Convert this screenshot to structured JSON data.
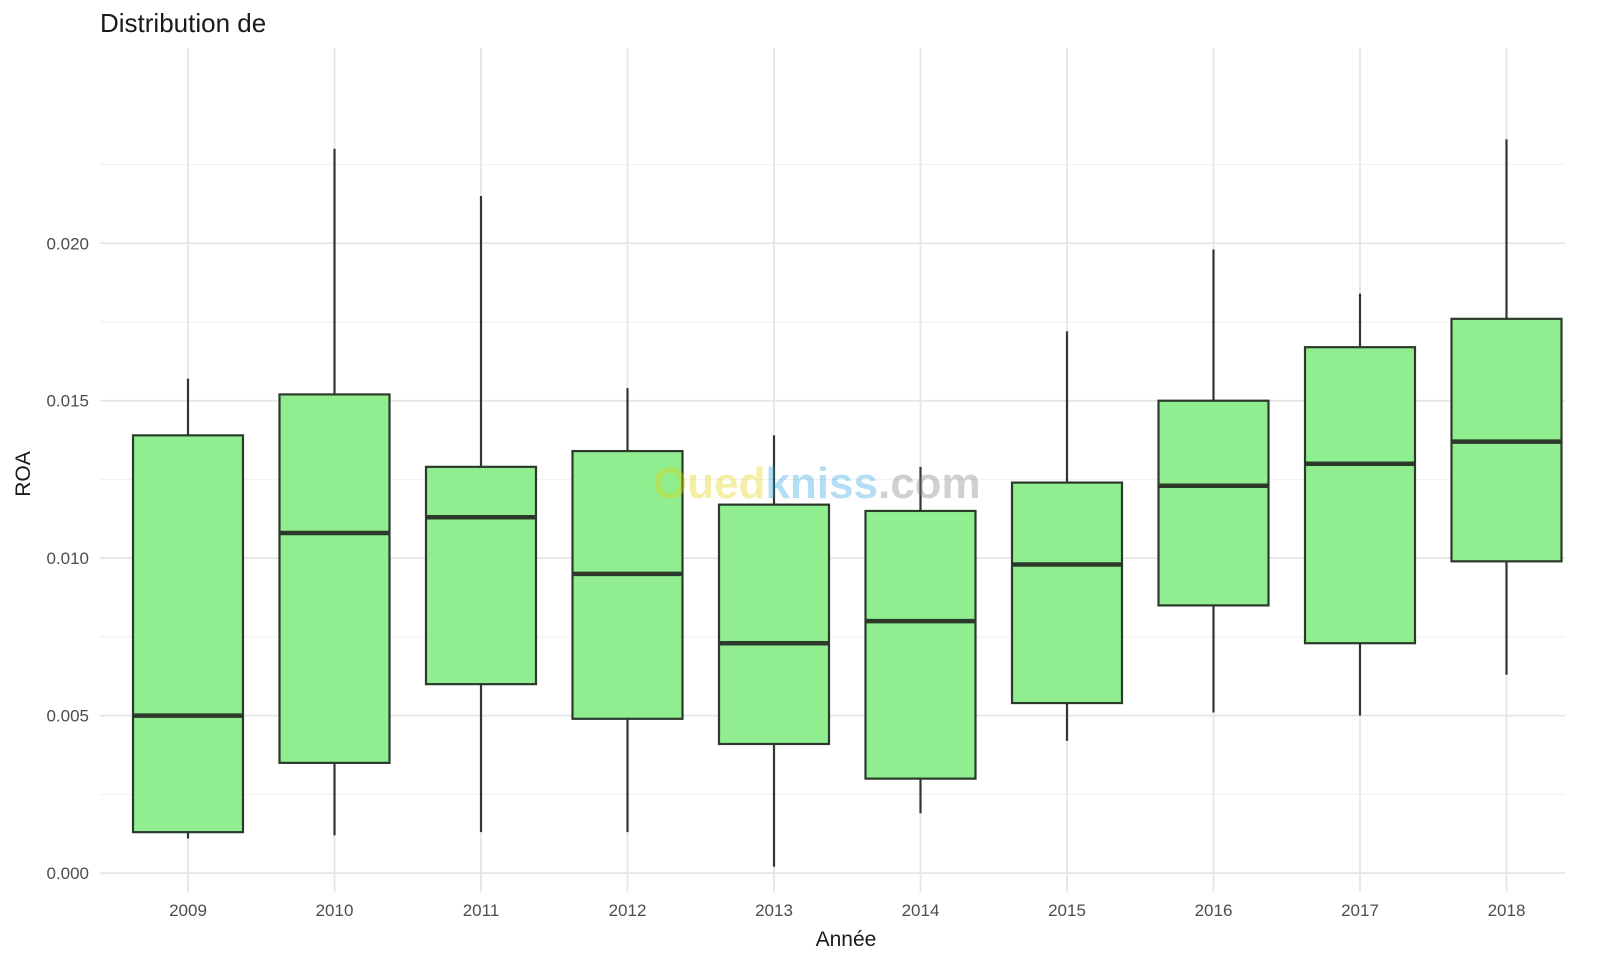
{
  "watermark": {
    "part1": "Oued",
    "part2": "kniss",
    "part3": ".com",
    "colors": [
      "#e3d400",
      "#2aa3dd",
      "#7a7a7a"
    ]
  },
  "chart_data": {
    "type": "boxplot",
    "title": "Distribution de",
    "xlabel": "Année",
    "ylabel": "ROA",
    "ylim": [
      -0.0006,
      0.0262
    ],
    "yticks": [
      0.0,
      0.005,
      0.01,
      0.015,
      0.02
    ],
    "ytick_labels": [
      "0.000",
      "0.005",
      "0.010",
      "0.015",
      "0.020"
    ],
    "grid": true,
    "fill_color": "#90ee90",
    "stroke_color": "#2b3a2b",
    "categories": [
      "2009",
      "2010",
      "2011",
      "2012",
      "2013",
      "2014",
      "2015",
      "2016",
      "2017",
      "2018"
    ],
    "boxes": [
      {
        "category": "2009",
        "whisker_low": 0.0011,
        "q1": 0.0013,
        "median": 0.005,
        "q3": 0.0139,
        "whisker_high": 0.0157
      },
      {
        "category": "2010",
        "whisker_low": 0.0012,
        "q1": 0.0035,
        "median": 0.0108,
        "q3": 0.0152,
        "whisker_high": 0.023
      },
      {
        "category": "2011",
        "whisker_low": 0.0013,
        "q1": 0.006,
        "median": 0.0113,
        "q3": 0.0129,
        "whisker_high": 0.0215
      },
      {
        "category": "2012",
        "whisker_low": 0.0013,
        "q1": 0.0049,
        "median": 0.0095,
        "q3": 0.0134,
        "whisker_high": 0.0154
      },
      {
        "category": "2013",
        "whisker_low": 0.0002,
        "q1": 0.0041,
        "median": 0.0073,
        "q3": 0.0117,
        "whisker_high": 0.0139
      },
      {
        "category": "2014",
        "whisker_low": 0.0019,
        "q1": 0.003,
        "median": 0.008,
        "q3": 0.0115,
        "whisker_high": 0.0129
      },
      {
        "category": "2015",
        "whisker_low": 0.0042,
        "q1": 0.0054,
        "median": 0.0098,
        "q3": 0.0124,
        "whisker_high": 0.0172
      },
      {
        "category": "2016",
        "whisker_low": 0.0051,
        "q1": 0.0085,
        "median": 0.0123,
        "q3": 0.015,
        "whisker_high": 0.0198
      },
      {
        "category": "2017",
        "whisker_low": 0.005,
        "q1": 0.0073,
        "median": 0.013,
        "q3": 0.0167,
        "whisker_high": 0.0184
      },
      {
        "category": "2018",
        "whisker_low": 0.0063,
        "q1": 0.0099,
        "median": 0.0137,
        "q3": 0.0176,
        "whisker_high": 0.0233
      }
    ]
  }
}
